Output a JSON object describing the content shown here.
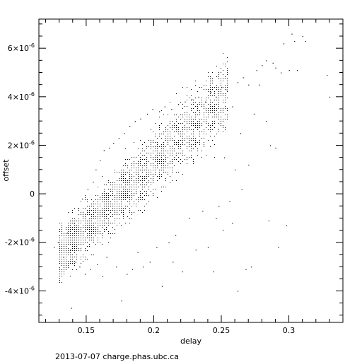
{
  "chart_data": {
    "type": "scatter",
    "xlabel": "delay",
    "ylabel": "offset",
    "xlim": [
      0.115,
      0.34
    ],
    "ylim": [
      -5.3e-06,
      7.2e-06
    ],
    "x_ticks": [
      {
        "value": 0.15,
        "label": "0.15"
      },
      {
        "value": 0.2,
        "label": "0.2"
      },
      {
        "value": 0.25,
        "label": "0.25"
      },
      {
        "value": 0.3,
        "label": "0.3"
      }
    ],
    "y_ticks": [
      {
        "value": -4e-06,
        "mantissa": "-4×10",
        "exp": "-6"
      },
      {
        "value": -2e-06,
        "mantissa": "-2×10",
        "exp": "-6"
      },
      {
        "value": 0,
        "mantissa": "0",
        "exp": ""
      },
      {
        "value": 2e-06,
        "mantissa": "2×10",
        "exp": "-6"
      },
      {
        "value": 4e-06,
        "mantissa": "4×10",
        "exp": "-6"
      },
      {
        "value": 6e-06,
        "mantissa": "6×10",
        "exp": "-6"
      }
    ],
    "grid": false,
    "series": [
      {
        "points": [
          [
            0.126,
            -2.2e-06
          ],
          [
            0.129,
            -2e-06
          ],
          [
            0.133,
            -2.6e-06
          ],
          [
            0.136,
            -1.6e-06
          ],
          [
            0.138,
            -2.3e-06
          ],
          [
            0.139,
            -4.7e-06
          ],
          [
            0.141,
            -1.2e-06
          ],
          [
            0.142,
            -2.8e-06
          ],
          [
            0.144,
            -6e-07
          ],
          [
            0.145,
            -3e-06
          ],
          [
            0.147,
            -2e-07
          ],
          [
            0.149,
            -3.3e-06
          ],
          [
            0.151,
            2e-07
          ],
          [
            0.153,
            -3.1e-06
          ],
          [
            0.155,
            5e-07
          ],
          [
            0.157,
            1e-06
          ],
          [
            0.158,
            -2.9e-06
          ],
          [
            0.16,
            1.4e-06
          ],
          [
            0.162,
            -3.4e-06
          ],
          [
            0.163,
            1.8e-06
          ],
          [
            0.165,
            -2.6e-06
          ],
          [
            0.167,
            1.9e-06
          ],
          [
            0.17,
            2.1e-06
          ],
          [
            0.172,
            -3e-06
          ],
          [
            0.174,
            2.3e-06
          ],
          [
            0.176,
            -4.4e-06
          ],
          [
            0.178,
            2.5e-06
          ],
          [
            0.18,
            -3.3e-06
          ],
          [
            0.182,
            2.8e-06
          ],
          [
            0.184,
            -3.1e-06
          ],
          [
            0.186,
            3e-06
          ],
          [
            0.188,
            -2.4e-06
          ],
          [
            0.19,
            3.1e-06
          ],
          [
            0.192,
            -3e-06
          ],
          [
            0.195,
            3.3e-06
          ],
          [
            0.197,
            -2.8e-06
          ],
          [
            0.199,
            3.5e-06
          ],
          [
            0.202,
            -2.2e-06
          ],
          [
            0.204,
            3.4e-06
          ],
          [
            0.206,
            -3.8e-06
          ],
          [
            0.208,
            3.6e-06
          ],
          [
            0.211,
            -2e-06
          ],
          [
            0.213,
            3.5e-06
          ],
          [
            0.216,
            -1.7e-06
          ],
          [
            0.218,
            3.7e-06
          ],
          [
            0.221,
            -3.2e-06
          ],
          [
            0.223,
            3.8e-06
          ],
          [
            0.226,
            -1e-06
          ],
          [
            0.228,
            3.9e-06
          ],
          [
            0.231,
            -2.3e-06
          ],
          [
            0.233,
            4e-06
          ],
          [
            0.236,
            -7e-07
          ],
          [
            0.238,
            3.8e-06
          ],
          [
            0.24,
            -2.2e-06
          ],
          [
            0.242,
            4.2e-06
          ],
          [
            0.244,
            -3.2e-06
          ],
          [
            0.246,
            4e-06
          ],
          [
            0.248,
            -5e-07
          ],
          [
            0.25,
            4.4e-06
          ],
          [
            0.252,
            1.5e-06
          ],
          [
            0.254,
            4.3e-06
          ],
          [
            0.256,
            -3e-07
          ],
          [
            0.258,
            3.6e-06
          ],
          [
            0.26,
            1e-06
          ],
          [
            0.262,
            4.6e-06
          ],
          [
            0.264,
            2.5e-06
          ],
          [
            0.266,
            4.8e-06
          ],
          [
            0.268,
            -3.1e-06
          ],
          [
            0.27,
            4.5e-06
          ],
          [
            0.272,
            -3e-06
          ],
          [
            0.274,
            3.3e-06
          ],
          [
            0.276,
            5.1e-06
          ],
          [
            0.278,
            4.5e-06
          ],
          [
            0.28,
            5.3e-06
          ],
          [
            0.283,
            5.5e-06
          ],
          [
            0.285,
            -1.1e-06
          ],
          [
            0.286,
            2e-06
          ],
          [
            0.288,
            5.4e-06
          ],
          [
            0.29,
            5.2e-06
          ],
          [
            0.292,
            -2.2e-06
          ],
          [
            0.294,
            5e-06
          ],
          [
            0.296,
            6.2e-06
          ],
          [
            0.298,
            -1.3e-06
          ],
          [
            0.3,
            5.1e-06
          ],
          [
            0.302,
            6.6e-06
          ],
          [
            0.304,
            6.3e-06
          ],
          [
            0.306,
            5.1e-06
          ],
          [
            0.31,
            6.5e-06
          ],
          [
            0.312,
            6.3e-06
          ],
          [
            0.328,
            4.9e-06
          ],
          [
            0.33,
            4e-06
          ],
          [
            0.283,
            3e-06
          ],
          [
            0.29,
            1.9e-06
          ],
          [
            0.27,
            1.2e-06
          ],
          [
            0.265,
            2e-07
          ],
          [
            0.258,
            -1.2e-06
          ],
          [
            0.251,
            -1.5e-06
          ],
          [
            0.246,
            -1e-06
          ],
          [
            0.262,
            -4e-06
          ],
          [
            0.214,
            -2.8e-06
          ]
        ]
      }
    ]
  },
  "footer": {
    "text": "2013-07-07  charge.phas.ubc.ca"
  }
}
